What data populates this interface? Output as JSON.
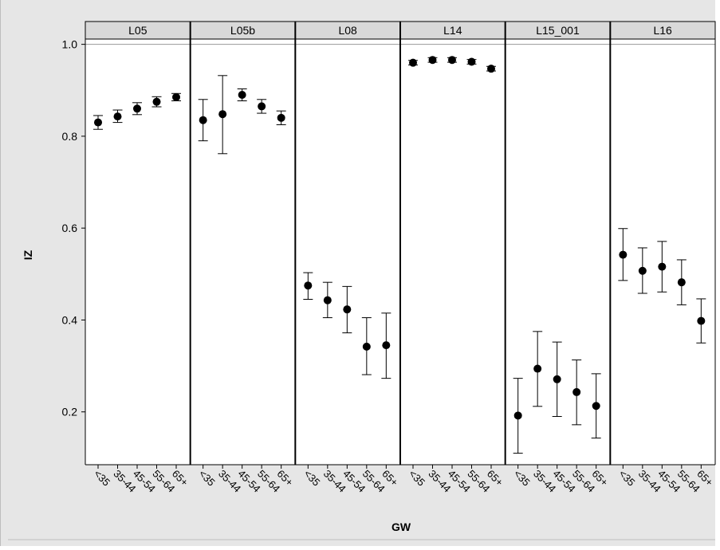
{
  "chart_data": {
    "type": "scatter",
    "subtype": "faceted point estimates with error bars",
    "xlabel": "GW",
    "ylabel": "IZ",
    "ylim": [
      0.085,
      1.08
    ],
    "yticks": [
      "1.0",
      "0.8",
      "0.6",
      "0.4",
      "0.2"
    ],
    "reference_line": 1.0,
    "categories": [
      "<35",
      "35-44",
      "45-54",
      "55-64",
      "65+"
    ],
    "colors": {
      "panel_bg": "#e6e6e6",
      "strip_bg": "#d9d9d9",
      "point": "#000000",
      "refline": "#9a9a9a"
    },
    "panels": [
      {
        "label": "L05",
        "values": [
          0.83,
          0.843,
          0.86,
          0.875,
          0.885
        ],
        "lower": [
          0.815,
          0.83,
          0.847,
          0.864,
          0.877
        ],
        "upper": [
          0.845,
          0.857,
          0.873,
          0.886,
          0.893
        ]
      },
      {
        "label": "L05b",
        "values": [
          0.835,
          0.848,
          0.89,
          0.865,
          0.84
        ],
        "lower": [
          0.79,
          0.762,
          0.877,
          0.85,
          0.825
        ],
        "upper": [
          0.88,
          0.932,
          0.903,
          0.88,
          0.855
        ]
      },
      {
        "label": "L08",
        "values": [
          0.475,
          0.443,
          0.423,
          0.342,
          0.345
        ],
        "lower": [
          0.445,
          0.405,
          0.372,
          0.281,
          0.273
        ],
        "upper": [
          0.503,
          0.482,
          0.473,
          0.405,
          0.415
        ]
      },
      {
        "label": "L14",
        "values": [
          0.96,
          0.966,
          0.966,
          0.962,
          0.947
        ],
        "lower": [
          0.955,
          0.961,
          0.961,
          0.957,
          0.942
        ],
        "upper": [
          0.965,
          0.971,
          0.971,
          0.967,
          0.952
        ]
      },
      {
        "label": "L15_001",
        "values": [
          0.192,
          0.294,
          0.271,
          0.243,
          0.213
        ],
        "lower": [
          0.11,
          0.212,
          0.19,
          0.172,
          0.143
        ],
        "upper": [
          0.273,
          0.375,
          0.352,
          0.313,
          0.283
        ]
      },
      {
        "label": "L16",
        "values": [
          0.542,
          0.507,
          0.516,
          0.482,
          0.398
        ],
        "lower": [
          0.486,
          0.458,
          0.461,
          0.433,
          0.35
        ],
        "upper": [
          0.599,
          0.557,
          0.571,
          0.531,
          0.446
        ]
      }
    ]
  }
}
